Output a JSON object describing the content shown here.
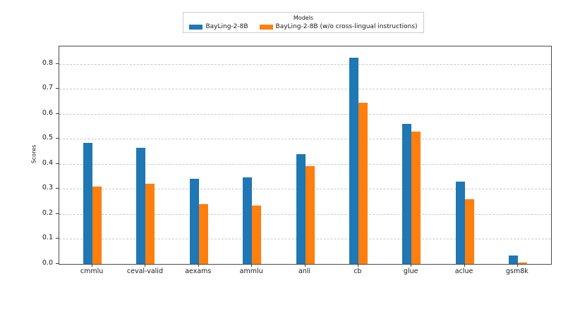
{
  "window": {
    "background": "#ffffff"
  },
  "legend": {
    "title": "Models",
    "entries": [
      {
        "label": "BayLing-2-8B",
        "color": "#1f77b4"
      },
      {
        "label": "BayLing-2-8B (w/o cross-lingual instructions)",
        "color": "#ff7f0e"
      }
    ]
  },
  "chart_data": {
    "type": "bar",
    "title": "",
    "xlabel": "",
    "ylabel": "Scores",
    "categories": [
      "cmmlu",
      "ceval-valid",
      "aexams",
      "ammlu",
      "anli",
      "cb",
      "glue",
      "aclue",
      "gsm8k"
    ],
    "series": [
      {
        "name": "BayLing-2-8B",
        "color": "#1f77b4",
        "values": [
          0.485,
          0.465,
          0.34,
          0.345,
          0.44,
          0.825,
          0.56,
          0.33,
          0.035
        ]
      },
      {
        "name": "BayLing-2-8B (w/o cross-lingual instructions)",
        "color": "#ff7f0e",
        "values": [
          0.31,
          0.32,
          0.24,
          0.235,
          0.39,
          0.645,
          0.53,
          0.26,
          0.005
        ]
      }
    ],
    "ylim": [
      0,
      0.87
    ],
    "yticks": [
      0.0,
      0.1,
      0.2,
      0.3,
      0.4,
      0.5,
      0.6,
      0.7,
      0.8
    ],
    "grid": {
      "axis": "y",
      "style": "dashed",
      "color": "#c9c9c9"
    },
    "legend_position": "upper-center-outside",
    "legend_title": "Models"
  }
}
